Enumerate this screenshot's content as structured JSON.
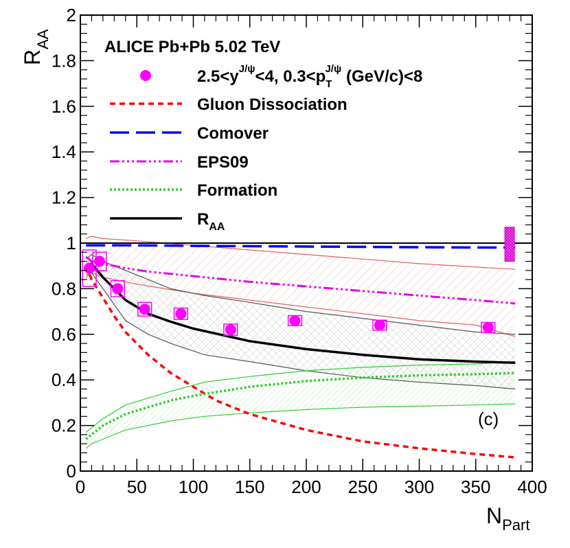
{
  "chart_data": {
    "type": "line",
    "title": "ALICE Pb+Pb 5.02 TeV",
    "xlabel": "N",
    "xlabel_sub": "Part",
    "ylabel": "R",
    "ylabel_sub": "AA",
    "xlim": [
      0,
      400
    ],
    "ylim": [
      0,
      2
    ],
    "x_ticks": [
      "0",
      "50",
      "100",
      "150",
      "200",
      "250",
      "300",
      "350",
      "400"
    ],
    "y_ticks": [
      "0",
      "0.2",
      "0.4",
      "0.6",
      "0.8",
      "1",
      "1.2",
      "1.4",
      "1.6",
      "1.8",
      "2"
    ],
    "panel_label": "(c)",
    "reference_line": 1.0,
    "legend_placement": "top-left",
    "legend": {
      "data": {
        "pre": "2.5<y",
        "sup1": "J/ψ",
        "mid": "<4, 0.3<p",
        "sub2": "T",
        "sup2": "J/ψ",
        "post": " (GeV/c)<8"
      },
      "gluon": "Gluon Dissociation",
      "comover": "Comover",
      "eps09": "EPS09",
      "formation": "Formation",
      "raa_main": "R",
      "raa_sub": "AA"
    },
    "colors": {
      "data": "#ff00ff",
      "gluon": "#ff0000",
      "comover": "#0000ff",
      "eps09": "#e600e6",
      "formation": "#33cc33",
      "raa": "#000000",
      "band_red": "#e06060",
      "band_gray": "#555555",
      "band_green": "#33cc33"
    },
    "data_points": {
      "x": [
        8,
        17,
        33,
        57,
        89,
        133,
        190,
        265,
        361
      ],
      "y": [
        0.89,
        0.92,
        0.8,
        0.71,
        0.69,
        0.62,
        0.66,
        0.64,
        0.63
      ],
      "syst_box_halfwidth": 6,
      "syst": [
        0.08,
        0.04,
        0.035,
        0.03,
        0.025,
        0.025,
        0.022,
        0.022,
        0.022
      ],
      "global_syst": {
        "x": 380,
        "low": 0.92,
        "high": 1.07
      }
    },
    "series": [
      {
        "key": "gluon",
        "x": [
          5,
          10,
          20,
          30,
          40,
          50,
          60,
          80,
          100,
          120,
          150,
          200,
          250,
          300,
          350,
          385
        ],
        "y": [
          0.9,
          0.84,
          0.76,
          0.68,
          0.61,
          0.56,
          0.51,
          0.43,
          0.37,
          0.31,
          0.25,
          0.18,
          0.13,
          0.1,
          0.075,
          0.06
        ]
      },
      {
        "key": "comover",
        "x": [
          5,
          50,
          100,
          200,
          300,
          385
        ],
        "y": [
          0.99,
          0.99,
          0.988,
          0.985,
          0.982,
          0.98
        ]
      },
      {
        "key": "eps09",
        "x": [
          5,
          10,
          20,
          40,
          60,
          100,
          150,
          200,
          250,
          300,
          350,
          385
        ],
        "y": [
          0.94,
          0.92,
          0.91,
          0.89,
          0.875,
          0.855,
          0.83,
          0.81,
          0.79,
          0.77,
          0.75,
          0.735
        ]
      },
      {
        "key": "formation",
        "x": [
          5,
          10,
          20,
          40,
          60,
          80,
          100,
          150,
          200,
          250,
          300,
          350,
          385
        ],
        "y": [
          0.14,
          0.16,
          0.2,
          0.25,
          0.28,
          0.31,
          0.33,
          0.37,
          0.395,
          0.41,
          0.42,
          0.425,
          0.43
        ]
      },
      {
        "key": "raa",
        "x": [
          5,
          10,
          20,
          30,
          40,
          60,
          80,
          100,
          150,
          200,
          250,
          300,
          350,
          385
        ],
        "y": [
          0.9,
          0.91,
          0.85,
          0.8,
          0.75,
          0.69,
          0.655,
          0.625,
          0.57,
          0.535,
          0.51,
          0.49,
          0.48,
          0.475
        ]
      }
    ],
    "bands": [
      {
        "key": "band_red",
        "x": [
          5,
          10,
          20,
          50,
          100,
          150,
          200,
          250,
          300,
          350,
          385
        ],
        "upper": [
          1.02,
          1.03,
          1.02,
          1.01,
          0.99,
          0.97,
          0.95,
          0.93,
          0.91,
          0.895,
          0.885
        ],
        "lower": [
          0.85,
          0.87,
          0.85,
          0.82,
          0.78,
          0.75,
          0.72,
          0.69,
          0.66,
          0.64,
          0.59
        ]
      },
      {
        "key": "band_gray",
        "x": [
          5,
          10,
          20,
          40,
          60,
          80,
          110,
          150,
          200,
          250,
          300,
          350,
          385
        ],
        "upper": [
          0.93,
          0.95,
          0.92,
          0.88,
          0.84,
          0.8,
          0.77,
          0.74,
          0.7,
          0.67,
          0.64,
          0.61,
          0.6
        ],
        "lower": [
          0.86,
          0.87,
          0.8,
          0.66,
          0.6,
          0.56,
          0.51,
          0.48,
          0.44,
          0.41,
          0.39,
          0.375,
          0.36
        ]
      },
      {
        "key": "band_green",
        "x": [
          5,
          10,
          20,
          40,
          60,
          80,
          110,
          150,
          200,
          250,
          300,
          350,
          385
        ],
        "upper": [
          0.17,
          0.19,
          0.23,
          0.29,
          0.32,
          0.35,
          0.39,
          0.415,
          0.44,
          0.455,
          0.465,
          0.47,
          0.48
        ],
        "lower": [
          0.1,
          0.12,
          0.14,
          0.18,
          0.2,
          0.22,
          0.24,
          0.255,
          0.27,
          0.28,
          0.285,
          0.29,
          0.295
        ]
      }
    ]
  }
}
